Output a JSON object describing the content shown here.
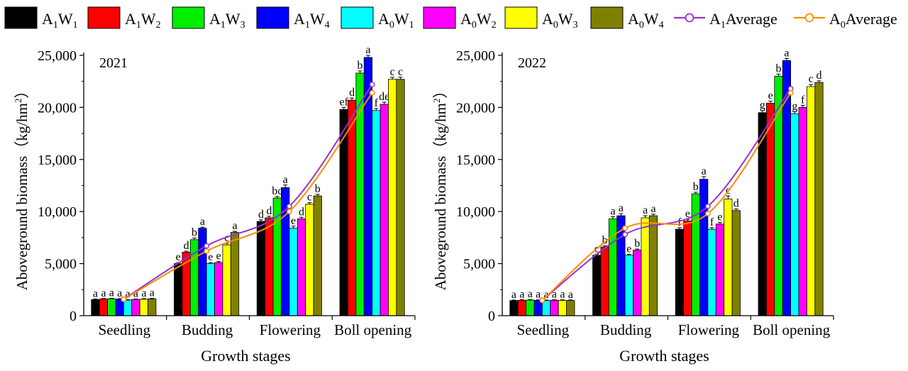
{
  "legend": {
    "items": [
      {
        "base": "A",
        "sub1": "1",
        "mid": "W",
        "sub2": "1",
        "color": "#000000",
        "kind": "bar"
      },
      {
        "base": "A",
        "sub1": "1",
        "mid": "W",
        "sub2": "2",
        "color": "#ff0000",
        "kind": "bar"
      },
      {
        "base": "A",
        "sub1": "1",
        "mid": "W",
        "sub2": "3",
        "color": "#00ee00",
        "kind": "bar"
      },
      {
        "base": "A",
        "sub1": "1",
        "mid": "W",
        "sub2": "4",
        "color": "#0000ff",
        "kind": "bar"
      },
      {
        "base": "A",
        "sub1": "0",
        "mid": "W",
        "sub2": "1",
        "color": "#00ffff",
        "kind": "bar"
      },
      {
        "base": "A",
        "sub1": "0",
        "mid": "W",
        "sub2": "2",
        "color": "#ff00ff",
        "kind": "bar"
      },
      {
        "base": "A",
        "sub1": "0",
        "mid": "W",
        "sub2": "3",
        "color": "#ffff00",
        "kind": "bar"
      },
      {
        "base": "A",
        "sub1": "0",
        "mid": "W",
        "sub2": "4",
        "color": "#808000",
        "kind": "bar"
      },
      {
        "base": "A",
        "sub1": "1",
        "mid": "Average",
        "sub2": "",
        "color": "#9932cc",
        "kind": "line"
      },
      {
        "base": "A",
        "sub1": "0",
        "mid": "Average",
        "sub2": "",
        "color": "#ff8c00",
        "kind": "line"
      }
    ]
  },
  "chart_data": [
    {
      "type": "bar",
      "title": "2021",
      "xlabel": "Growth stages",
      "ylabel": "Aboveground biomass（kg/hm",
      "ylabel_sup": "2",
      "ylabel_close": "）",
      "ylim": [
        0,
        25000
      ],
      "yticks": [
        "0",
        "5,000",
        "10,000",
        "15,000",
        "20,000",
        "25,000"
      ],
      "categories": [
        "Seedling",
        "Budding",
        "Flowering",
        "Boll opening"
      ],
      "series": [
        {
          "name": "A1W1",
          "color": "#000000",
          "values": [
            1550,
            5000,
            9050,
            19800
          ],
          "errors": [
            50,
            100,
            150,
            200
          ],
          "letters": [
            "a",
            "e",
            "d",
            "ef"
          ]
        },
        {
          "name": "A1W2",
          "color": "#ff0000",
          "values": [
            1600,
            6100,
            9400,
            20700
          ],
          "errors": [
            50,
            100,
            150,
            200
          ],
          "letters": [
            "a",
            "d",
            "d",
            "d"
          ]
        },
        {
          "name": "A1W3",
          "color": "#00ee00",
          "values": [
            1620,
            7300,
            11300,
            23300
          ],
          "errors": [
            50,
            150,
            150,
            200
          ],
          "letters": [
            "a",
            "b",
            "bc",
            "b"
          ]
        },
        {
          "name": "A1W4",
          "color": "#0000ff",
          "values": [
            1580,
            8400,
            12300,
            24800
          ],
          "errors": [
            50,
            100,
            250,
            200
          ],
          "letters": [
            "a",
            "a",
            "a",
            "a"
          ]
        },
        {
          "name": "A0W1",
          "color": "#00ffff",
          "values": [
            1500,
            5000,
            8400,
            19700
          ],
          "errors": [
            50,
            100,
            200,
            200
          ],
          "letters": [
            "a",
            "e",
            "e",
            "f"
          ]
        },
        {
          "name": "A0W2",
          "color": "#ff00ff",
          "values": [
            1560,
            5100,
            9300,
            20300
          ],
          "errors": [
            50,
            100,
            150,
            200
          ],
          "letters": [
            "a",
            "e",
            "d",
            "de"
          ]
        },
        {
          "name": "A0W3",
          "color": "#ffff00",
          "values": [
            1580,
            6800,
            10700,
            22700
          ],
          "errors": [
            50,
            150,
            150,
            200
          ],
          "letters": [
            "a",
            "c",
            "c",
            "c"
          ]
        },
        {
          "name": "A0W4",
          "color": "#808000",
          "values": [
            1620,
            8000,
            11500,
            22700
          ],
          "errors": [
            50,
            100,
            150,
            200
          ],
          "letters": [
            "a",
            "a",
            "b",
            "c"
          ]
        }
      ],
      "lines": [
        {
          "name": "A1Average",
          "color": "#9932cc",
          "values": [
            1580,
            6700,
            10500,
            22200
          ]
        },
        {
          "name": "A0Average",
          "color": "#ff8c00",
          "values": [
            1570,
            6200,
            10000,
            21400
          ]
        }
      ]
    },
    {
      "type": "bar",
      "title": "2022",
      "xlabel": "Growth stages",
      "ylabel": "Aboveground biomass（kg/hm",
      "ylabel_sup": "2",
      "ylabel_close": "）",
      "ylim": [
        0,
        25000
      ],
      "yticks": [
        "0",
        "5,000",
        "10,000",
        "15,000",
        "20,000",
        "25,000"
      ],
      "categories": [
        "Seedling",
        "Budding",
        "Flowering",
        "Boll opening"
      ],
      "series": [
        {
          "name": "A1W1",
          "color": "#000000",
          "values": [
            1450,
            5800,
            8300,
            19500
          ],
          "errors": [
            50,
            100,
            150,
            200
          ],
          "letters": [
            "a",
            "c",
            "f",
            "g"
          ]
        },
        {
          "name": "A1W2",
          "color": "#ff0000",
          "values": [
            1480,
            6600,
            9100,
            20400
          ],
          "errors": [
            50,
            100,
            150,
            200
          ],
          "letters": [
            "a",
            "b",
            "e",
            "e"
          ]
        },
        {
          "name": "A1W3",
          "color": "#00ee00",
          "values": [
            1500,
            9300,
            11700,
            23000
          ],
          "errors": [
            50,
            200,
            150,
            200
          ],
          "letters": [
            "a",
            "a",
            "b",
            "b"
          ]
        },
        {
          "name": "A1W4",
          "color": "#0000ff",
          "values": [
            1470,
            9600,
            13100,
            24500
          ],
          "errors": [
            50,
            200,
            250,
            200
          ],
          "letters": [
            "a",
            "a",
            "a",
            "a"
          ]
        },
        {
          "name": "A0W1",
          "color": "#00ffff",
          "values": [
            1450,
            5800,
            8300,
            19400
          ],
          "errors": [
            50,
            100,
            150,
            200
          ],
          "letters": [
            "a",
            "e",
            "f",
            "g"
          ]
        },
        {
          "name": "A0W2",
          "color": "#ff00ff",
          "values": [
            1480,
            6300,
            8800,
            20000
          ],
          "errors": [
            50,
            100,
            150,
            200
          ],
          "letters": [
            "a",
            "b",
            "e",
            "f"
          ]
        },
        {
          "name": "A0W3",
          "color": "#ffff00",
          "values": [
            1470,
            9400,
            11200,
            22000
          ],
          "errors": [
            50,
            200,
            300,
            200
          ],
          "letters": [
            "a",
            "a",
            "c",
            "c"
          ]
        },
        {
          "name": "A0W4",
          "color": "#808000",
          "values": [
            1460,
            9600,
            10100,
            22400
          ],
          "errors": [
            50,
            150,
            150,
            150
          ],
          "letters": [
            "a",
            "a",
            "d",
            "d"
          ]
        }
      ],
      "lines": [
        {
          "name": "A1Average",
          "color": "#9932cc",
          "values": [
            1480,
            7800,
            10500,
            21800
          ]
        },
        {
          "name": "A0Average",
          "color": "#ff8c00",
          "values": [
            1470,
            8400,
            9800,
            21400
          ]
        }
      ]
    }
  ]
}
